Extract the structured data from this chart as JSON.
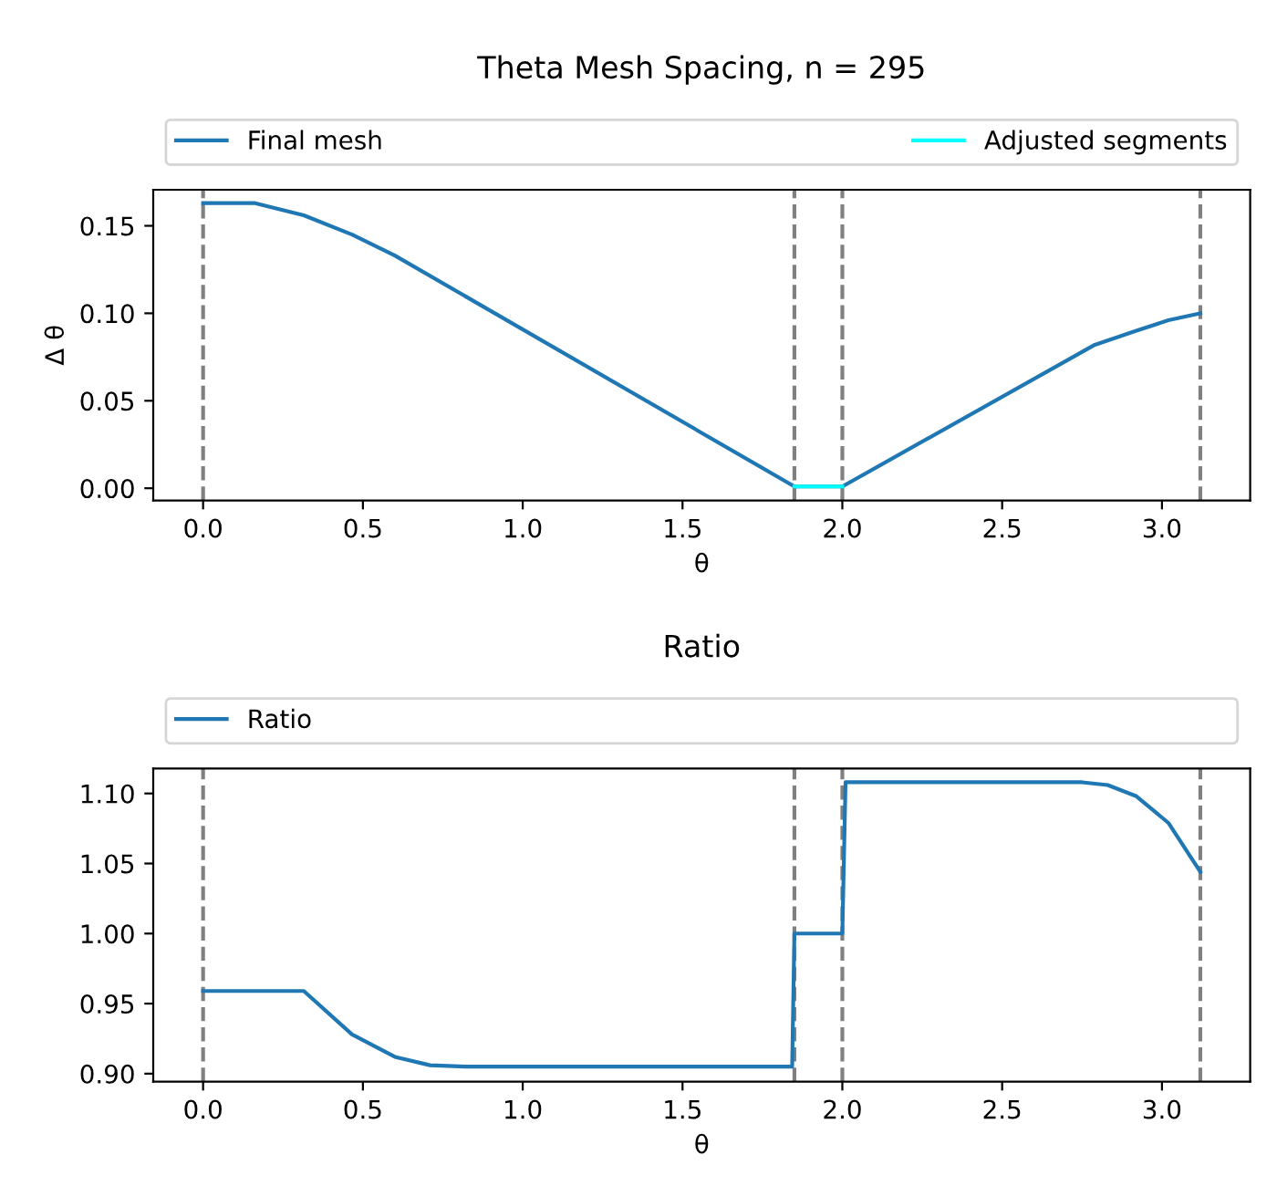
{
  "chart_data": [
    {
      "type": "line",
      "title": "Theta Mesh Spacing, n = 295",
      "xlabel": "θ",
      "ylabel": "Δ θ",
      "legend": "top",
      "grid": false,
      "series": [
        {
          "name": "Final mesh",
          "color": "#1f77b4",
          "x": [
            0,
            0.16,
            0.315,
            0.466,
            0.6,
            1.85,
            2.0,
            2.79,
            2.92,
            3.02,
            3.12
          ],
          "values": [
            0.163,
            0.163,
            0.156,
            0.145,
            0.133,
            0.001,
            0.001,
            0.082,
            0.09,
            0.096,
            0.1
          ]
        },
        {
          "name": "Adjusted segments",
          "color": "#00ffff",
          "x": [
            1.85,
            2.0
          ],
          "values": [
            0.001,
            0.001
          ]
        }
      ],
      "xlim": [
        -0.156,
        3.276
      ],
      "xticks": [
        {
          "value": 0,
          "label": "0.0"
        },
        0.5,
        {
          "value": 1,
          "label": "1.0"
        },
        1.5,
        {
          "value": 2,
          "label": "2.0"
        },
        2.5,
        {
          "value": 3,
          "label": "3.0"
        }
      ],
      "ylim": [
        -0.007,
        0.1706
      ],
      "yticks": [
        {
          "value": 0,
          "label": "0.00"
        },
        0.05,
        {
          "value": 0.1,
          "label": "0.10"
        },
        0.15
      ],
      "ref_lines": [
        {
          "axis": "x",
          "value": 0,
          "color": "#808080",
          "line_style": "dashed"
        },
        {
          "axis": "x",
          "value": 1.85,
          "color": "#808080",
          "line_style": "dashed"
        },
        {
          "axis": "x",
          "value": 2.0,
          "color": "#808080",
          "line_style": "dashed"
        },
        {
          "axis": "x",
          "value": 3.12,
          "color": "#808080",
          "line_style": "dashed"
        }
      ]
    },
    {
      "type": "line",
      "title": "Ratio",
      "xlabel": "θ",
      "legend": "top",
      "grid": false,
      "series": [
        {
          "name": "Ratio",
          "color": "#1f77b4",
          "x": [
            0,
            0.315,
            0.466,
            0.6,
            0.71,
            0.82,
            1.843,
            1.85,
            2.0,
            2.01,
            2.75,
            2.83,
            2.92,
            3.02,
            3.12
          ],
          "values": [
            0.959,
            0.959,
            0.928,
            0.912,
            0.906,
            0.905,
            0.905,
            1.0,
            1.0,
            1.108,
            1.108,
            1.106,
            1.098,
            1.079,
            1.044
          ]
        }
      ],
      "xlim": [
        -0.156,
        3.276
      ],
      "xticks": [
        {
          "value": 0,
          "label": "0.0"
        },
        0.5,
        {
          "value": 1,
          "label": "1.0"
        },
        1.5,
        {
          "value": 2,
          "label": "2.0"
        },
        2.5,
        {
          "value": 3,
          "label": "3.0"
        }
      ],
      "ylim": [
        0.8943,
        1.1178
      ],
      "yticks": [
        {
          "value": 0.9,
          "label": "0.90"
        },
        {
          "value": 0.95,
          "label": "0.95"
        },
        {
          "value": 1.0,
          "label": "1.00"
        },
        {
          "value": 1.05,
          "label": "1.05"
        },
        {
          "value": 1.1,
          "label": "1.10"
        }
      ],
      "ref_lines": [
        {
          "axis": "x",
          "value": 0,
          "color": "#808080",
          "line_style": "dashed"
        },
        {
          "axis": "x",
          "value": 1.85,
          "color": "#808080",
          "line_style": "dashed"
        },
        {
          "axis": "x",
          "value": 2.0,
          "color": "#808080",
          "line_style": "dashed"
        },
        {
          "axis": "x",
          "value": 3.12,
          "color": "#808080",
          "line_style": "dashed"
        }
      ]
    }
  ]
}
